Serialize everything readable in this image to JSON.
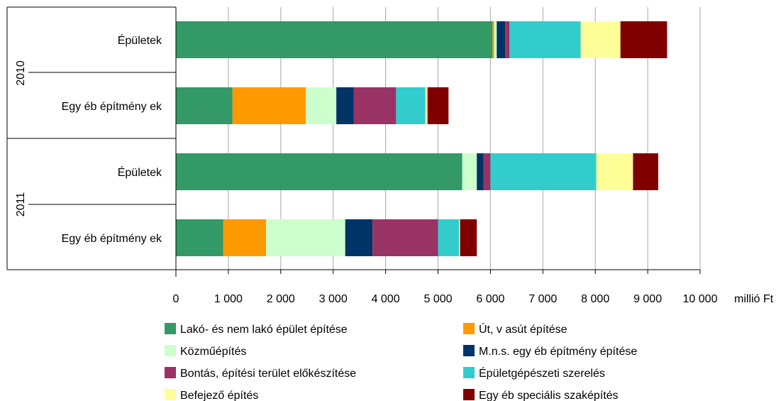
{
  "chart_data": {
    "type": "bar",
    "orientation": "horizontal",
    "stacked": true,
    "unit_label": "millió Ft",
    "xlim": [
      0,
      10000
    ],
    "ticks": [
      0,
      1000,
      2000,
      3000,
      4000,
      5000,
      6000,
      7000,
      8000,
      9000,
      10000
    ],
    "tick_labels": [
      "0",
      "1 000",
      "2 000",
      "3 000",
      "4 000",
      "5 000",
      "6 000",
      "7 000",
      "8 000",
      "9 000",
      "10 000"
    ],
    "grid": true,
    "legend_position": "bottom",
    "groups": [
      {
        "label": "2010",
        "categories": [
          "Épületek",
          "Egy éb építmény ek"
        ]
      },
      {
        "label": "2011",
        "categories": [
          "Épületek",
          "Egy éb építmény ek"
        ]
      }
    ],
    "categories": [
      "2010 – Épületek",
      "2010 – Egy éb építmény ek",
      "2011 – Épületek",
      "2011 – Egy éb építmény ek"
    ],
    "series": [
      {
        "name": "Lakó- és nem lakó épület építése",
        "color": "#339966",
        "values": [
          6040,
          1080,
          5460,
          900
        ]
      },
      {
        "name": "Út, v asút építése",
        "color": "#ff9900",
        "values": [
          30,
          1400,
          0,
          820
        ]
      },
      {
        "name": "Közműépítés",
        "color": "#ccffcc",
        "values": [
          50,
          580,
          280,
          1510
        ]
      },
      {
        "name": "M.n.s. egy éb építmény építése",
        "color": "#003366",
        "values": [
          160,
          330,
          130,
          520
        ]
      },
      {
        "name": "Bontás, építési terület előkészítése",
        "color": "#993366",
        "values": [
          80,
          810,
          130,
          1250
        ]
      },
      {
        "name": "Épületgépészeti szerelés",
        "color": "#33cccc",
        "values": [
          1360,
          560,
          2020,
          400
        ]
      },
      {
        "name": "Befejező építés",
        "color": "#ffff99",
        "values": [
          760,
          40,
          700,
          20
        ]
      },
      {
        "name": "Egy éb speciális szaképítés",
        "color": "#800000",
        "values": [
          890,
          400,
          480,
          320
        ]
      }
    ]
  }
}
